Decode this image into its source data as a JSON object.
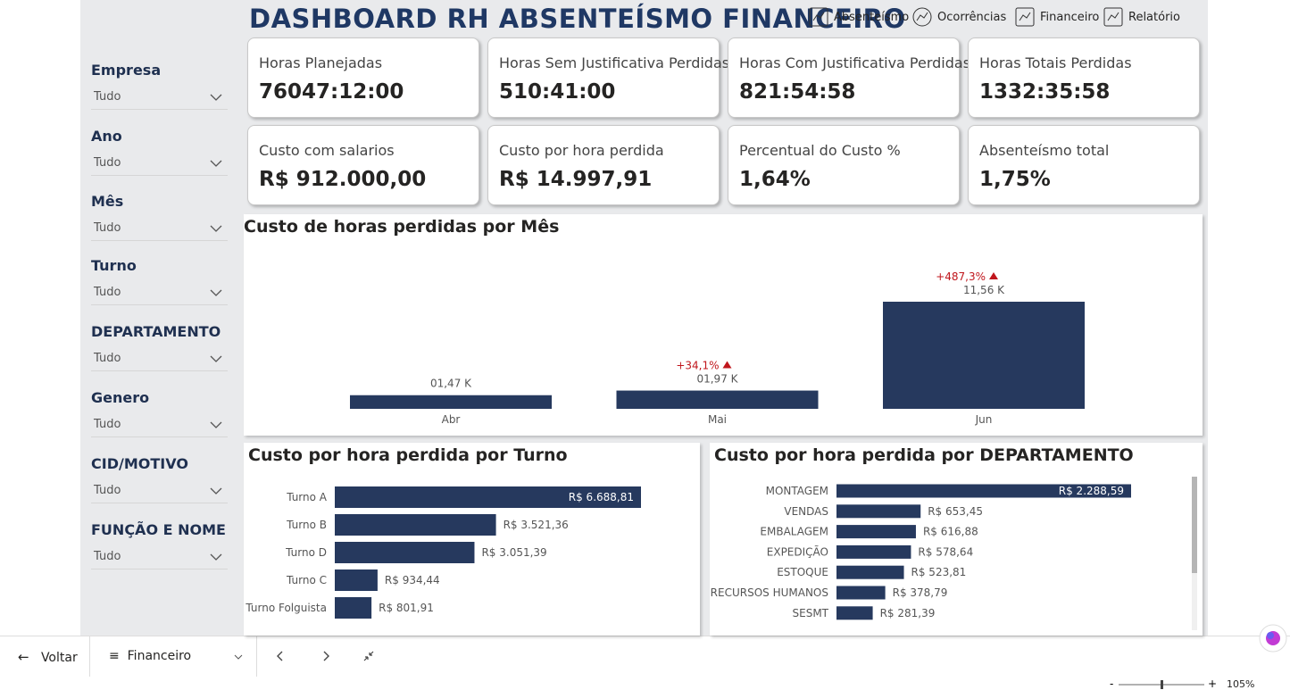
{
  "header": {
    "title": "DASHBOARD RH ABSENTEÍSMO FINANCEIRO",
    "nav": [
      "Absenteísmo",
      "Ocorrências",
      "Financeiro",
      "Relatório"
    ]
  },
  "filters": [
    {
      "label": "Empresa",
      "value": "Tudo"
    },
    {
      "label": "Ano",
      "value": "Tudo"
    },
    {
      "label": "Mês",
      "value": "Tudo"
    },
    {
      "label": "Turno",
      "value": "Tudo"
    },
    {
      "label": "DEPARTAMENTO",
      "value": "Tudo"
    },
    {
      "label": "Genero",
      "value": "Tudo"
    },
    {
      "label": "CID/MOTIVO",
      "value": "Tudo"
    },
    {
      "label": "FUNÇÃO E NOME",
      "value": "Tudo"
    }
  ],
  "kpis": [
    {
      "label": "Horas Planejadas",
      "value": "76047:12:00"
    },
    {
      "label": "Horas Sem Justificativa Perdidas",
      "value": "510:41:00"
    },
    {
      "label": "Horas Com Justificativa Perdidas",
      "value": "821:54:58"
    },
    {
      "label": "Horas Totais Perdidas",
      "value": "1332:35:58"
    },
    {
      "label": "Custo com salarios",
      "value": "R$ 912.000,00"
    },
    {
      "label": "Custo por hora perdida",
      "value": "R$ 14.997,91"
    },
    {
      "label": "Percentual do Custo %",
      "value": "1,64%"
    },
    {
      "label": "Absenteísmo total",
      "value": "1,75%"
    }
  ],
  "chart_data": [
    {
      "type": "bar",
      "title": "Custo de horas perdidas por Mês",
      "categories": [
        "Abr",
        "Mai",
        "Jun"
      ],
      "values": [
        1.47,
        1.97,
        11.56
      ],
      "value_labels": [
        "01,47 K",
        "01,97 K",
        "11,56 K"
      ],
      "change_labels": [
        null,
        "+34,1%",
        "+487,3%"
      ],
      "color": "#26395e"
    },
    {
      "type": "barh",
      "title": "Custo por hora perdida por Turno",
      "categories": [
        "Turno A",
        "Turno B",
        "Turno D",
        "Turno C",
        "Turno Folguista"
      ],
      "values": [
        6688.81,
        3521.36,
        3051.39,
        934.44,
        801.91
      ],
      "value_labels": [
        "R$ 6.688,81",
        "R$ 3.521,36",
        "R$ 3.051,39",
        "R$ 934,44",
        "R$ 801,91"
      ],
      "color": "#26395e"
    },
    {
      "type": "barh",
      "title": "Custo por hora perdida por DEPARTAMENTO",
      "categories": [
        "MONTAGEM",
        "VENDAS",
        "EMBALAGEM",
        "EXPEDIÇÃO",
        "ESTOQUE",
        "RECURSOS HUMANOS",
        "SESMT"
      ],
      "values": [
        2288.59,
        653.45,
        616.88,
        578.64,
        523.81,
        378.79,
        281.39
      ],
      "value_labels": [
        "R$ 2.288,59",
        "R$ 653,45",
        "R$ 616,88",
        "R$ 578,64",
        "R$ 523,81",
        "R$ 378,79",
        "R$ 281,39"
      ],
      "color": "#26395e"
    }
  ],
  "footer": {
    "back": "Voltar",
    "page": "Financeiro",
    "zoom": "105%"
  }
}
